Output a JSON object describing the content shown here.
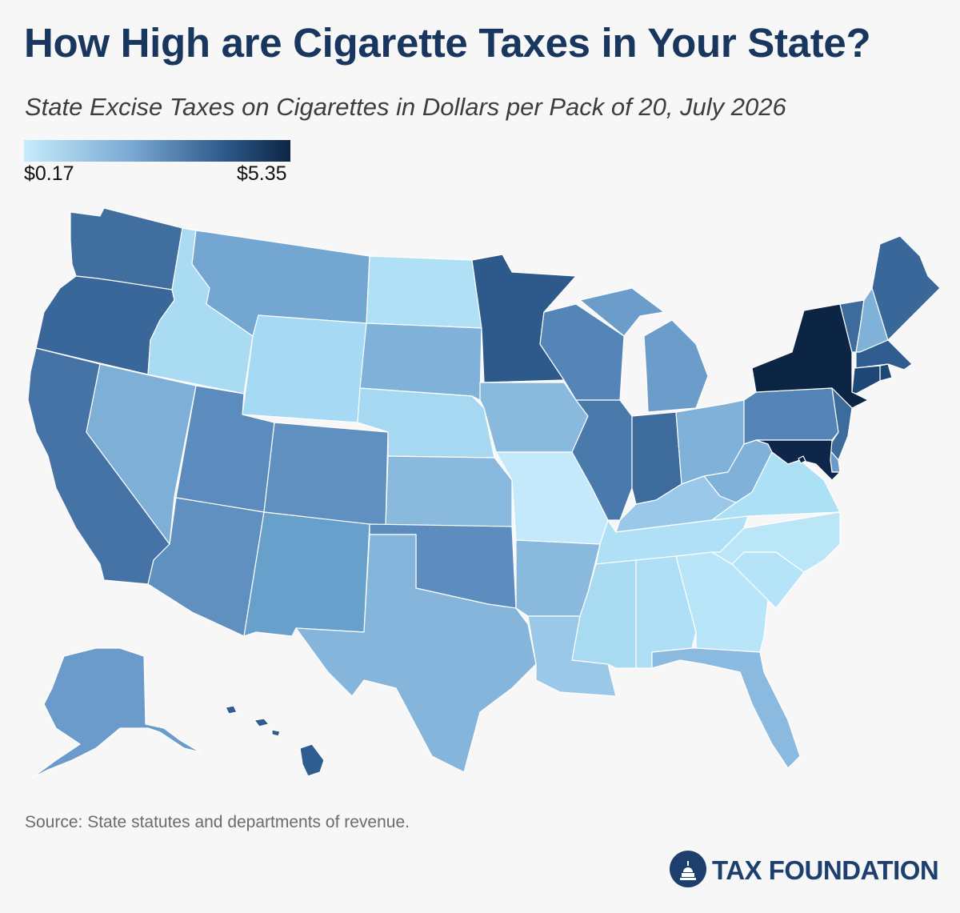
{
  "title": "How High are Cigarette Taxes in Your State?",
  "subtitle": "State Excise Taxes on Cigarettes in Dollars per Pack of 20, July 2026",
  "legend": {
    "min_label": "$0.17",
    "max_label": "$5.35",
    "color_min": "#c6ebfb",
    "color_max": "#0d2545"
  },
  "source": "Source: State statutes and departments of revenue.",
  "brand": {
    "name": "TAX FOUNDATION",
    "color": "#1d3f6e",
    "icon": "capitol-dome-icon"
  },
  "map_states": [
    {
      "id": "WA",
      "color": "#3f6e9f"
    },
    {
      "id": "OR",
      "color": "#3a6799"
    },
    {
      "id": "CA",
      "color": "#4673a5"
    },
    {
      "id": "ID",
      "color": "#a9dbf3"
    },
    {
      "id": "NV",
      "color": "#7eafd6"
    },
    {
      "id": "MT",
      "color": "#74a6d2"
    },
    {
      "id": "WY",
      "color": "#a6d9f3"
    },
    {
      "id": "UT",
      "color": "#5b8cbd"
    },
    {
      "id": "AZ",
      "color": "#5f90c0"
    },
    {
      "id": "CO",
      "color": "#5f90c0"
    },
    {
      "id": "NM",
      "color": "#68a0cc"
    },
    {
      "id": "ND",
      "color": "#afe0f6"
    },
    {
      "id": "SD",
      "color": "#80b2d9"
    },
    {
      "id": "NE",
      "color": "#a6d8f1"
    },
    {
      "id": "KS",
      "color": "#8ab9de"
    },
    {
      "id": "OK",
      "color": "#5c8dbe"
    },
    {
      "id": "TX",
      "color": "#86b5db"
    },
    {
      "id": "MN",
      "color": "#2d5a8a"
    },
    {
      "id": "IA",
      "color": "#8ab9de"
    },
    {
      "id": "MO",
      "color": "#c3e9fa"
    },
    {
      "id": "AR",
      "color": "#8ab9de"
    },
    {
      "id": "LA",
      "color": "#99c8e8"
    },
    {
      "id": "WI",
      "color": "#5585b8"
    },
    {
      "id": "IL",
      "color": "#4a79ab"
    },
    {
      "id": "MI",
      "color": "#6c9dca"
    },
    {
      "id": "IN",
      "color": "#3d6b9c"
    },
    {
      "id": "OH",
      "color": "#80b2d9"
    },
    {
      "id": "KY",
      "color": "#99c8e8"
    },
    {
      "id": "TN",
      "color": "#b0e0f6"
    },
    {
      "id": "MS",
      "color": "#a8daf2"
    },
    {
      "id": "AL",
      "color": "#afdff6"
    },
    {
      "id": "GA",
      "color": "#b8e5f8"
    },
    {
      "id": "FL",
      "color": "#8abae0"
    },
    {
      "id": "SC",
      "color": "#b5e3f7"
    },
    {
      "id": "NC",
      "color": "#bae6f8"
    },
    {
      "id": "VA",
      "color": "#ace0f5"
    },
    {
      "id": "WV",
      "color": "#80b2d9"
    },
    {
      "id": "PA",
      "color": "#5585b8"
    },
    {
      "id": "NY",
      "color": "#0d2545"
    },
    {
      "id": "VT",
      "color": "#3d6b9c"
    },
    {
      "id": "NH",
      "color": "#80b2d9"
    },
    {
      "id": "ME",
      "color": "#3a6799"
    },
    {
      "id": "MA",
      "color": "#2f5d8f"
    },
    {
      "id": "RI",
      "color": "#1e4677"
    },
    {
      "id": "CT",
      "color": "#1f4776"
    },
    {
      "id": "NJ",
      "color": "#3d6b9c"
    },
    {
      "id": "DE",
      "color": "#6a9bca"
    },
    {
      "id": "MD",
      "color": "#0e2649"
    },
    {
      "id": "DC",
      "color": "#0d2545"
    },
    {
      "id": "AK",
      "color": "#6a9bca"
    },
    {
      "id": "HI",
      "color": "#2f5d8f"
    }
  ]
}
